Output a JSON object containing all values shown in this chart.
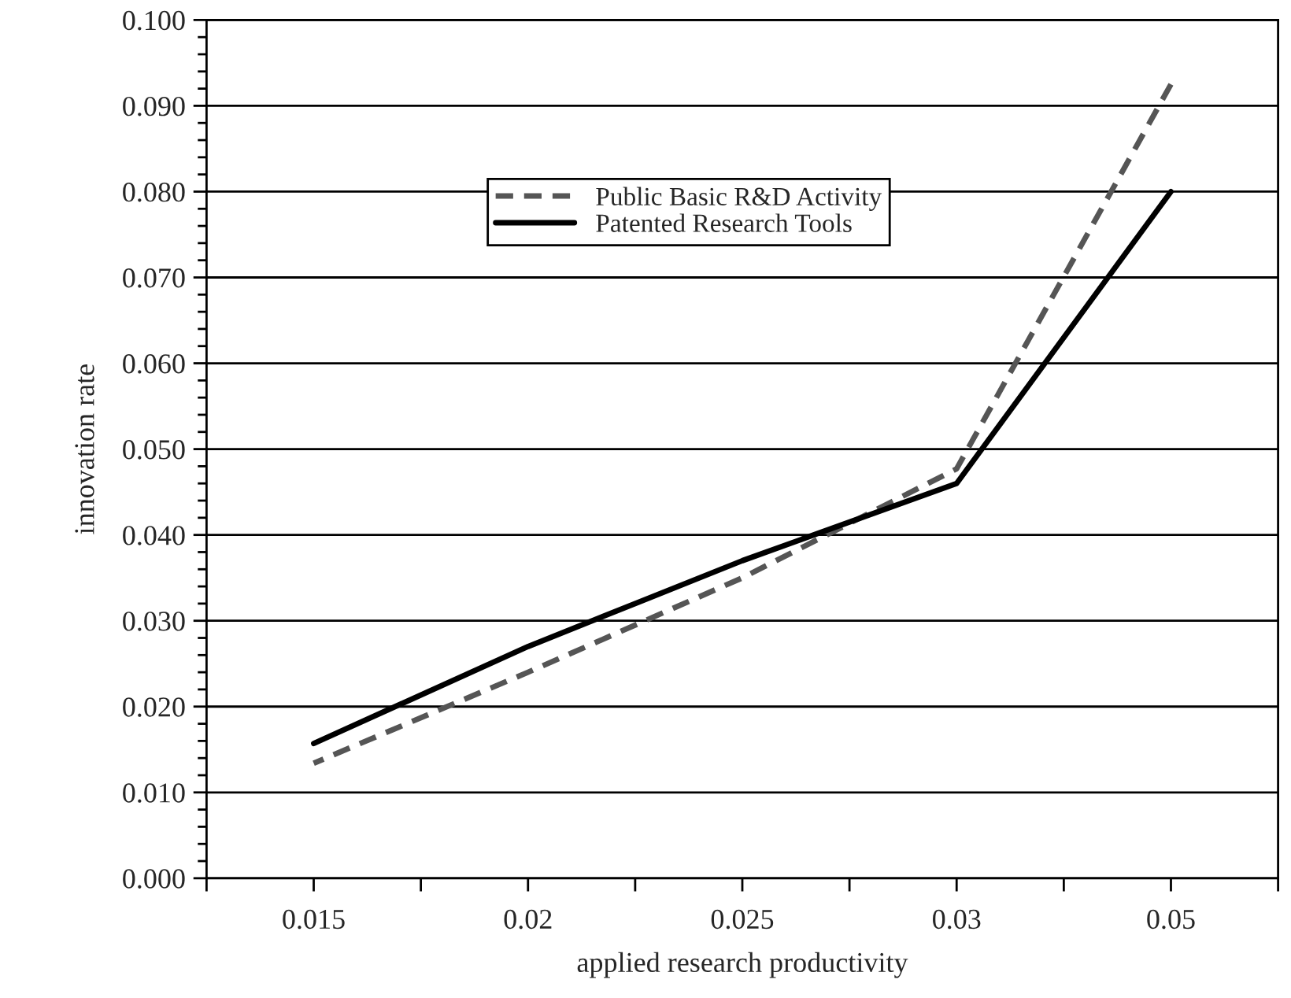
{
  "chart_data": {
    "type": "line",
    "xlabel": "applied research productivity",
    "ylabel": "innovation rate",
    "categories": [
      "0.015",
      "0.02",
      "0.025",
      "0.03",
      "0.05"
    ],
    "series": [
      {
        "name": "Public Basic R&D Activity",
        "color": "#555555",
        "line_style": "dashed",
        "values": [
          0.0134,
          0.024,
          0.035,
          0.0477,
          0.0925
        ]
      },
      {
        "name": "Patented Research Tools",
        "color": "#000000",
        "line_style": "solid",
        "values": [
          0.0157,
          0.027,
          0.037,
          0.046,
          0.08
        ]
      }
    ],
    "ylim": [
      0,
      0.1
    ],
    "yticks": [
      {
        "value": 0,
        "label": "0.000"
      },
      {
        "value": 0.01,
        "label": "0.010"
      },
      {
        "value": 0.02,
        "label": "0.020"
      },
      {
        "value": 0.03,
        "label": "0.030"
      },
      {
        "value": 0.04,
        "label": "0.040"
      },
      {
        "value": 0.05,
        "label": "0.050"
      },
      {
        "value": 0.06,
        "label": "0.060"
      },
      {
        "value": 0.07,
        "label": "0.070"
      },
      {
        "value": 0.08,
        "label": "0.080"
      },
      {
        "value": 0.09,
        "label": "0.090"
      },
      {
        "value": 0.1,
        "label": "0.100"
      }
    ],
    "grid": "y",
    "legend": "top",
    "marker": "none"
  }
}
